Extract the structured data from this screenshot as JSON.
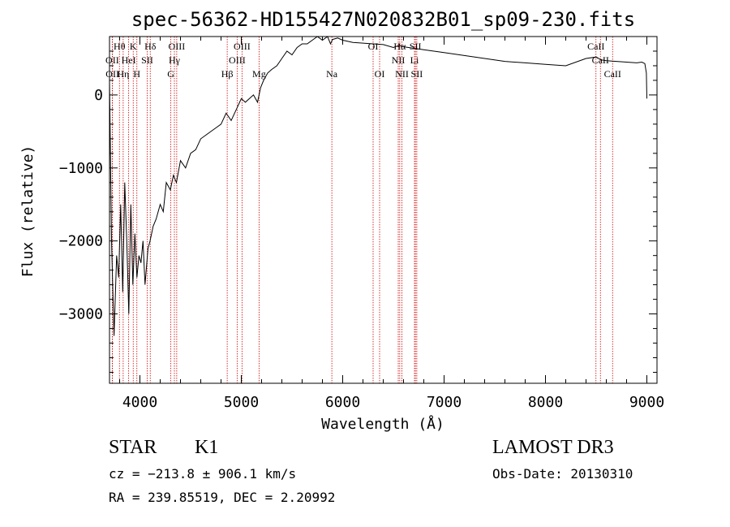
{
  "header": {
    "title": "spec-56362-HD155427N020832B01_sp09-230.fits"
  },
  "info": {
    "object_type": "STAR",
    "subclass": "K1",
    "survey": "LAMOST DR3",
    "cz": "cz = −213.8 ± 906.1 km/s",
    "obs_date": "Obs-Date: 20130310",
    "radec": "RA = 239.85519, DEC =   2.20992"
  },
  "chart_data": {
    "type": "line",
    "title": "spec-56362-HD155427N020832B01_sp09-230.fits",
    "xlabel": "Wavelength (Å)",
    "ylabel": "Flux (relative)",
    "xlim": [
      3700,
      9100
    ],
    "ylim": [
      -3950,
      800
    ],
    "xticks": [
      4000,
      5000,
      6000,
      7000,
      8000,
      9000
    ],
    "yticks": [
      0,
      -1000,
      -2000,
      -3000
    ],
    "ytick_labels": [
      "0",
      "−1000",
      "−2000",
      "−3000"
    ],
    "x": [
      3700,
      3720,
      3745,
      3770,
      3790,
      3810,
      3830,
      3850,
      3870,
      3890,
      3910,
      3930,
      3950,
      3970,
      3990,
      4010,
      4030,
      4050,
      4080,
      4100,
      4130,
      4160,
      4200,
      4230,
      4260,
      4300,
      4330,
      4360,
      4400,
      4450,
      4500,
      4550,
      4600,
      4650,
      4700,
      4750,
      4800,
      4850,
      4900,
      4950,
      5000,
      5040,
      5080,
      5120,
      5160,
      5190,
      5220,
      5260,
      5300,
      5350,
      5400,
      5450,
      5500,
      5550,
      5600,
      5650,
      5700,
      5750,
      5800,
      5850,
      5880,
      5900,
      5950,
      6000,
      6100,
      6200,
      6300,
      6400,
      6500,
      6560,
      6600,
      6700,
      6800,
      7000,
      7200,
      7400,
      7600,
      7800,
      8000,
      8200,
      8400,
      8500,
      8550,
      8600,
      8700,
      8800,
      8900,
      8950,
      8980,
      8995,
      9000
    ],
    "values": [
      200,
      -2000,
      -3300,
      -2200,
      -2500,
      -1500,
      -2700,
      -1200,
      -2000,
      -3000,
      -1500,
      -2600,
      -1900,
      -2500,
      -2200,
      -2300,
      -2000,
      -2600,
      -2100,
      -2000,
      -1800,
      -1700,
      -1500,
      -1600,
      -1200,
      -1300,
      -1100,
      -1200,
      -900,
      -1000,
      -800,
      -750,
      -600,
      -550,
      -500,
      -450,
      -400,
      -250,
      -350,
      -200,
      -50,
      -100,
      -50,
      0,
      -100,
      100,
      200,
      300,
      350,
      400,
      500,
      600,
      550,
      650,
      700,
      700,
      750,
      800,
      750,
      800,
      700,
      760,
      780,
      750,
      720,
      710,
      700,
      690,
      650,
      680,
      660,
      640,
      620,
      580,
      540,
      500,
      460,
      440,
      420,
      400,
      500,
      520,
      480,
      470,
      460,
      450,
      440,
      450,
      430,
      300,
      -50
    ],
    "emission_lines": [
      {
        "label": "Hθ",
        "wl": 3798,
        "row": 0
      },
      {
        "label": "K",
        "wl": 3934,
        "row": 0
      },
      {
        "label": "Hδ",
        "wl": 4102,
        "row": 0
      },
      {
        "label": "OIII",
        "wl": 4363,
        "row": 0
      },
      {
        "label": "OIII",
        "wl": 5007,
        "row": 0
      },
      {
        "label": "OI",
        "wl": 6300,
        "row": 0
      },
      {
        "label": "Hα",
        "wl": 6563,
        "row": 0
      },
      {
        "label": "SII",
        "wl": 6717,
        "row": 0
      },
      {
        "label": "CaII",
        "wl": 8498,
        "row": 0
      },
      {
        "label": "OII",
        "wl": 3727,
        "row": 1
      },
      {
        "label": "HeI",
        "wl": 3889,
        "row": 1
      },
      {
        "label": "SII",
        "wl": 4072,
        "row": 1
      },
      {
        "label": "Hγ",
        "wl": 4340,
        "row": 1
      },
      {
        "label": "OIII",
        "wl": 4959,
        "row": 1
      },
      {
        "label": "NII",
        "wl": 6548,
        "row": 1
      },
      {
        "label": "Li",
        "wl": 6708,
        "row": 1
      },
      {
        "label": "CaII",
        "wl": 8542,
        "row": 1
      },
      {
        "label": "OII",
        "wl": 3729,
        "row": 2
      },
      {
        "label": "Hη",
        "wl": 3835,
        "row": 2
      },
      {
        "label": "H",
        "wl": 3970,
        "row": 2
      },
      {
        "label": "G",
        "wl": 4305,
        "row": 2
      },
      {
        "label": "Hβ",
        "wl": 4861,
        "row": 2
      },
      {
        "label": "Mg",
        "wl": 5175,
        "row": 2
      },
      {
        "label": "Na",
        "wl": 5893,
        "row": 2
      },
      {
        "label": "OI",
        "wl": 6364,
        "row": 2
      },
      {
        "label": "NII",
        "wl": 6584,
        "row": 2
      },
      {
        "label": "SII",
        "wl": 6731,
        "row": 2
      },
      {
        "label": "CaII",
        "wl": 8662,
        "row": 2
      }
    ],
    "line_color": "#000000",
    "marker_color": "#cc0000"
  }
}
